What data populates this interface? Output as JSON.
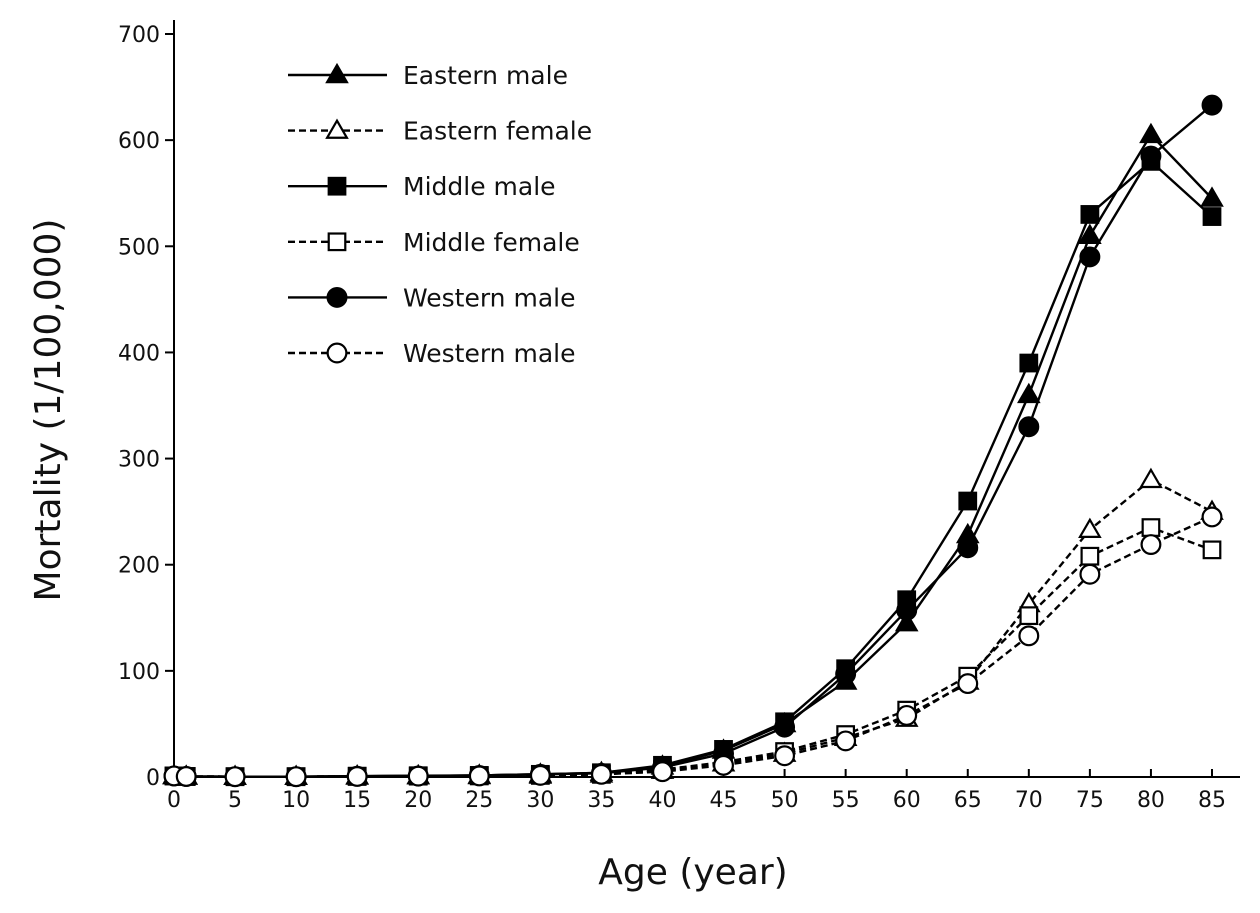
{
  "chart_data": {
    "type": "line",
    "title": "",
    "xlabel": "Age (year)",
    "ylabel": "Mortality (1/100,000)",
    "x": [
      0,
      1,
      5,
      10,
      15,
      20,
      25,
      30,
      35,
      40,
      45,
      50,
      55,
      60,
      65,
      70,
      75,
      80,
      85
    ],
    "x_ticks": [
      "0",
      "5",
      "10",
      "15",
      "20",
      "25",
      "30",
      "35",
      "40",
      "45",
      "50",
      "55",
      "60",
      "65",
      "70",
      "75",
      "80",
      "85"
    ],
    "x_tick_values": [
      0,
      5,
      10,
      15,
      20,
      25,
      30,
      35,
      40,
      45,
      50,
      55,
      60,
      65,
      70,
      75,
      80,
      85
    ],
    "y_ticks": [
      "0",
      "100",
      "200",
      "300",
      "400",
      "500",
      "600",
      "700"
    ],
    "y_tick_values": [
      0,
      100,
      200,
      300,
      400,
      500,
      600,
      700
    ],
    "xlim": [
      0,
      87
    ],
    "ylim": [
      0,
      720
    ],
    "grid": false,
    "legend_position": "top-left",
    "series": [
      {
        "name": "Eastern male",
        "marker": "triangle",
        "fill": "filled",
        "dash": "solid",
        "values": [
          1,
          0.5,
          0.3,
          0.3,
          0.8,
          1,
          1.5,
          2.5,
          4,
          10,
          25,
          50,
          90,
          145,
          228,
          360,
          510,
          605,
          545
        ]
      },
      {
        "name": "Eastern female",
        "marker": "triangle",
        "fill": "open",
        "dash": "dashed",
        "values": [
          1,
          0.5,
          0.3,
          0.3,
          0.5,
          0.8,
          1,
          1.5,
          2.5,
          6,
          13,
          22,
          37,
          55,
          90,
          163,
          233,
          280,
          250
        ]
      },
      {
        "name": "Middle male",
        "marker": "square",
        "fill": "filled",
        "dash": "solid",
        "values": [
          1,
          0.5,
          0.3,
          0.3,
          0.8,
          1.2,
          1.5,
          2.5,
          4,
          11,
          26,
          52,
          102,
          167,
          260,
          390,
          530,
          580,
          528
        ]
      },
      {
        "name": "Middle female",
        "marker": "square",
        "fill": "open",
        "dash": "dashed",
        "values": [
          1,
          0.5,
          0.3,
          0.3,
          0.5,
          0.8,
          1,
          1.5,
          2.5,
          7,
          14,
          24,
          40,
          63,
          95,
          152,
          208,
          235,
          214
        ]
      },
      {
        "name": "Western male",
        "marker": "circle",
        "fill": "filled",
        "dash": "solid",
        "values": [
          1,
          0.5,
          0.3,
          0.3,
          0.8,
          1,
          1.5,
          2.5,
          3.5,
          9,
          22,
          47,
          97,
          157,
          216,
          330,
          490,
          585,
          633
        ]
      },
      {
        "name": "Western male",
        "marker": "circle",
        "fill": "open",
        "dash": "dashed",
        "values": [
          1,
          0.5,
          0.3,
          0.3,
          0.5,
          0.8,
          1,
          1.5,
          2.5,
          5,
          11,
          20,
          34,
          58,
          88,
          133,
          191,
          219,
          245
        ]
      }
    ]
  },
  "colors": {
    "line": "#000000",
    "open_fill": "#ffffff",
    "background": "#ffffff"
  }
}
